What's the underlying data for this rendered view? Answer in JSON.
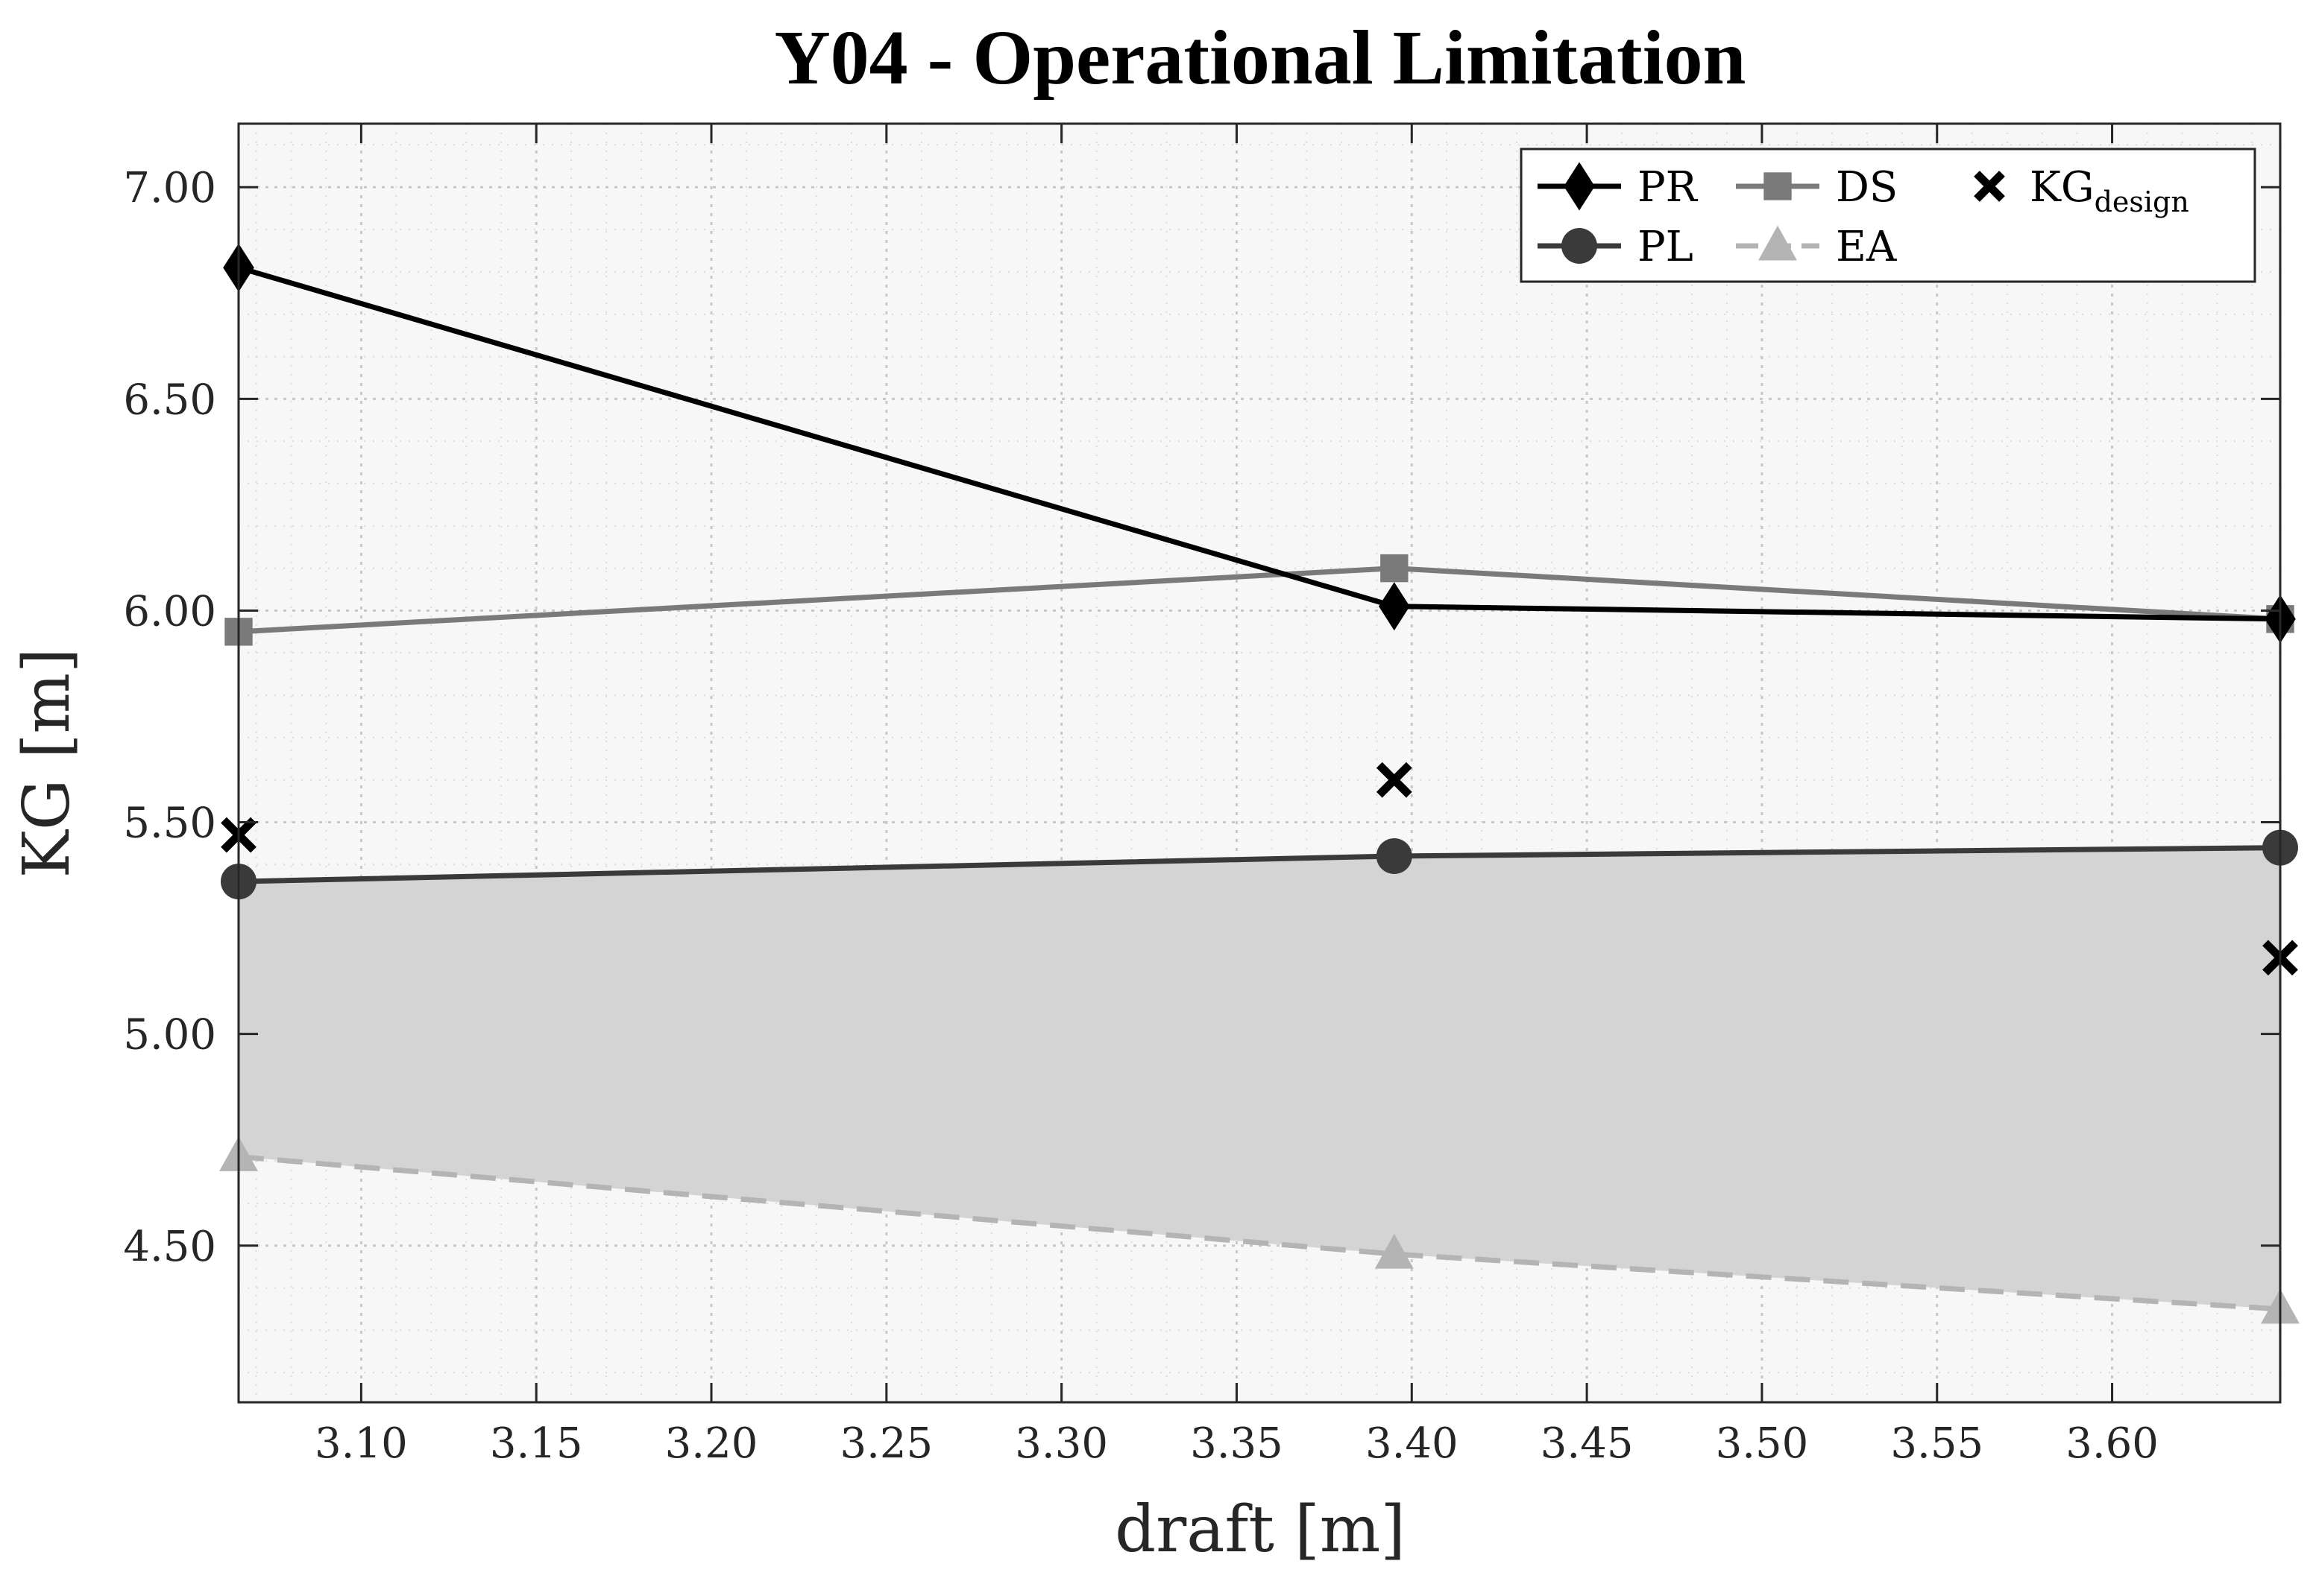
{
  "chart_data": {
    "type": "line",
    "title": "Y04 - Operational Limitation",
    "xlabel": "draft [m]",
    "ylabel": "KG [m]",
    "xlim": [
      3.065,
      3.648
    ],
    "ylim": [
      4.13,
      7.15
    ],
    "xticks": [
      3.1,
      3.15,
      3.2,
      3.25,
      3.3,
      3.35,
      3.4,
      3.45,
      3.5,
      3.55,
      3.6
    ],
    "xtick_labels": [
      "3.10",
      "3.15",
      "3.20",
      "3.25",
      "3.30",
      "3.35",
      "3.40",
      "3.45",
      "3.50",
      "3.55",
      "3.60"
    ],
    "yticks": [
      4.5,
      5.0,
      5.5,
      6.0,
      6.5,
      7.0
    ],
    "ytick_labels": [
      "4.50",
      "5.00",
      "5.50",
      "6.00",
      "6.50",
      "7.00"
    ],
    "grid": true,
    "minor_grid": true,
    "x": [
      3.065,
      3.395,
      3.648
    ],
    "series": [
      {
        "name": "PR",
        "values": [
          6.81,
          6.01,
          5.98
        ],
        "color": "#000000",
        "marker": "diamond",
        "linestyle": "solid"
      },
      {
        "name": "PL",
        "values": [
          5.36,
          5.42,
          5.44
        ],
        "color": "#3a3a3a",
        "marker": "circle",
        "linestyle": "solid"
      },
      {
        "name": "DS",
        "values": [
          5.95,
          6.1,
          5.98
        ],
        "color": "#7a7a7a",
        "marker": "square",
        "linestyle": "solid"
      },
      {
        "name": "EA",
        "values": [
          4.71,
          4.48,
          4.35
        ],
        "color": "#b4b4b4",
        "marker": "triangle",
        "linestyle": "dashed"
      }
    ],
    "kg_design": {
      "name": "KG",
      "subscript": "design",
      "x": [
        3.065,
        3.395,
        3.648
      ],
      "values": [
        5.47,
        5.6,
        5.18
      ],
      "marker": "x",
      "color": "#000000"
    },
    "shaded_region": {
      "between": [
        "EA",
        "PL"
      ],
      "color": "#d4d4d4"
    },
    "legend": {
      "placement": "top-right",
      "entries": [
        "PR",
        "DS",
        "KG",
        "PL",
        "EA"
      ]
    }
  }
}
